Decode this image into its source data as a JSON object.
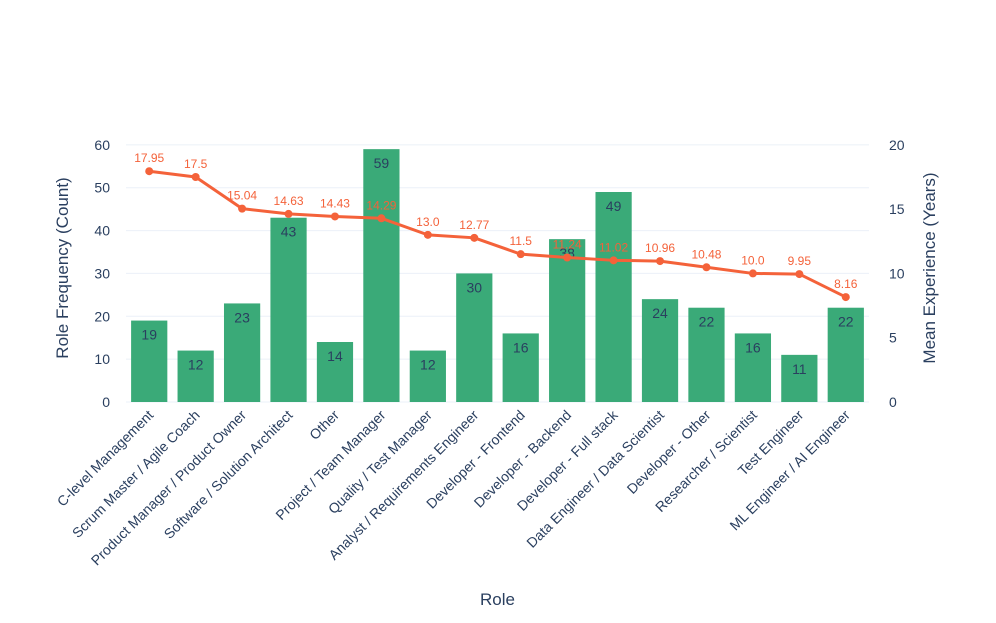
{
  "chart_data": {
    "type": "bar",
    "categories": [
      "C-level Management",
      "Scrum Master / Agile Coach",
      "Product Manager / Product Owner",
      "Software / Solution Architect",
      "Other",
      "Project / Team Manager",
      "Quality / Test Manager",
      "Analyst / Requirements Engineer",
      "Developer - Frontend",
      "Developer - Backend",
      "Developer - Full stack",
      "Data Engineer / Data Scientist",
      "Developer - Other",
      "Researcher / Scientist",
      "Test Engineer",
      "ML Engineer / AI Engineer"
    ],
    "series": [
      {
        "name": "Role Frequency (Count)",
        "type": "bar",
        "axis": "left",
        "color": "#3aaa78",
        "values": [
          19,
          12,
          23,
          43,
          14,
          59,
          12,
          30,
          16,
          38,
          49,
          24,
          22,
          16,
          11,
          22
        ],
        "labels": [
          "19",
          "12",
          "23",
          "43",
          "14",
          "59",
          "12",
          "30",
          "16",
          "38",
          "49",
          "24",
          "22",
          "16",
          "11",
          "22"
        ]
      },
      {
        "name": "Mean Experience (Years)",
        "type": "line",
        "axis": "right",
        "color": "#f4623a",
        "values": [
          17.95,
          17.5,
          15.04,
          14.63,
          14.43,
          14.29,
          13.0,
          12.77,
          11.5,
          11.24,
          11.02,
          10.96,
          10.48,
          10.0,
          9.95,
          8.16
        ],
        "labels": [
          "17.95",
          "17.5",
          "15.04",
          "14.63",
          "14.43",
          "14.29",
          "13.0",
          "12.77",
          "11.5",
          "11.24",
          "11.02",
          "10.96",
          "10.48",
          "10.0",
          "9.95",
          "8.16"
        ]
      }
    ],
    "xlabel": "Role",
    "ylabel": "Role Frequency (Count)",
    "y2label": "Mean Experience (Years)",
    "ylim": [
      0,
      63
    ],
    "y2lim": [
      0,
      21
    ],
    "yticks": [
      "0",
      "10",
      "20",
      "30",
      "40",
      "50",
      "60"
    ],
    "y2ticks": [
      "0",
      "5",
      "10",
      "15",
      "20"
    ],
    "grid": true
  }
}
